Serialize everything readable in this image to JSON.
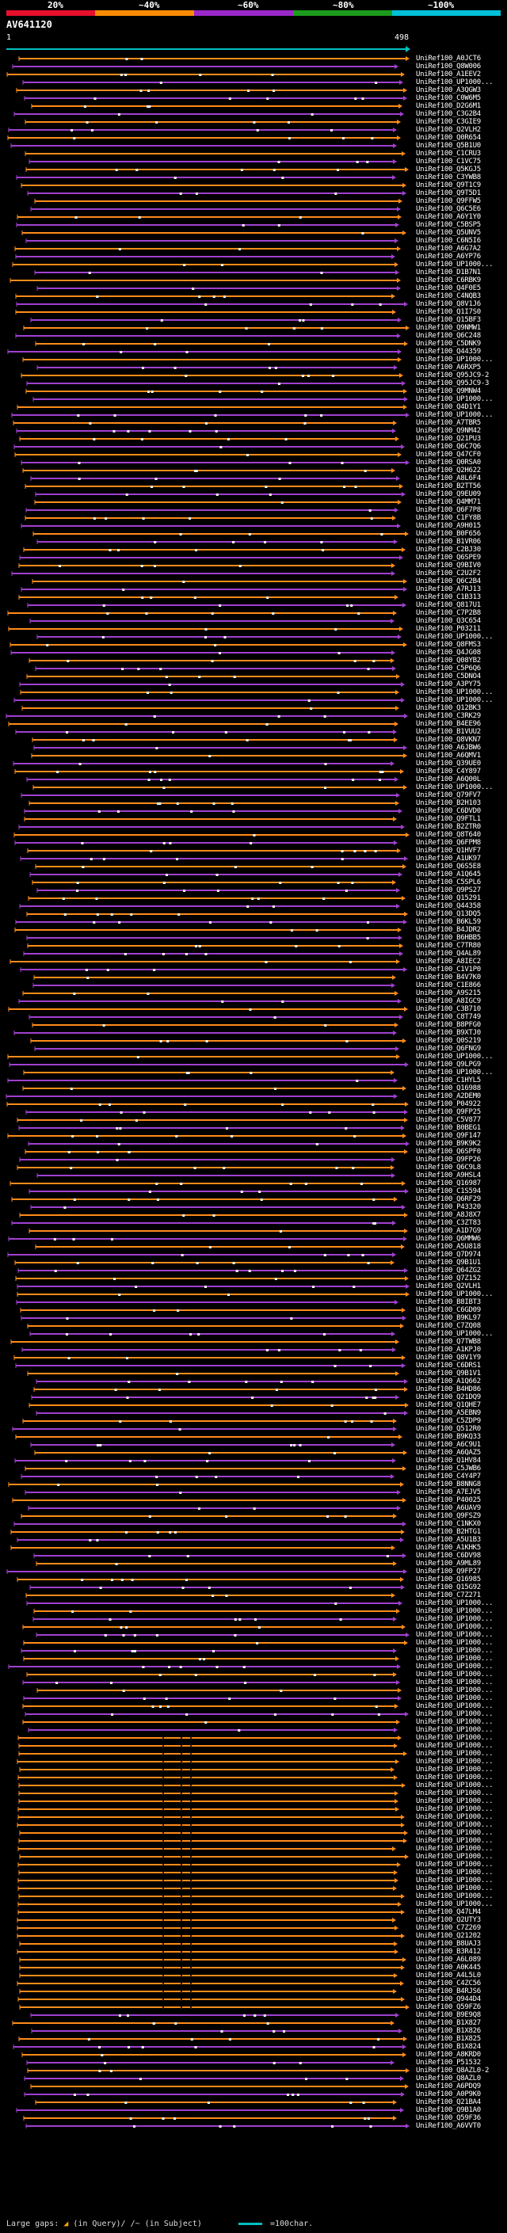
{
  "legend": {
    "labels": [
      "20%",
      "~40%",
      "~60%",
      "~80%",
      "~100%"
    ],
    "colors": [
      "#e8102c",
      "#ff8c00",
      "#9a28c8",
      "#1c9c1c",
      "#00c0d8"
    ]
  },
  "query": {
    "id": "AV641120",
    "start": "1",
    "end": "498"
  },
  "colors": {
    "orange": "#ff8c1a",
    "purple": "#a040d0",
    "axis": "#00c0c0",
    "background": "#000000"
  },
  "hits": [
    "UniRef100_A0JCT6",
    "UniRef100_Q8W006",
    "UniRef100_A1EEV2",
    "UniRef100_UP1000...",
    "UniRef100_A3QGW3",
    "UniRef100_C0W6M5",
    "UniRef100_D2G6M1",
    "UniRef100_C3G2B4",
    "UniRef100_C3GIE9",
    "UniRef100_Q2VLH2",
    "UniRef100_Q0R654",
    "UniRef100_Q5B1U0",
    "UniRef100_C1CRU3",
    "UniRef100_C1VC75",
    "UniRef100_Q5KGJ5",
    "UniRef100_C3YWB8",
    "UniRef100_Q9T1C9",
    "UniRef100_Q9T5D1",
    "UniRef100_Q9FFW5",
    "UniRef100_Q6C5E6",
    "UniRef100_A6Y1Y0",
    "UniRef100_C5BSP5",
    "UniRef100_Q5UNV5",
    "UniRef100_C6N5I6",
    "UniRef100_A6G7A2",
    "UniRef100_A6YP76",
    "UniRef100_UP1000...",
    "UniRef100_D1B7N1",
    "UniRef100_C6RBK9",
    "UniRef100_Q4F0E5",
    "UniRef100_C4NQB3",
    "UniRef100_Q8V1J6",
    "UniRef100_Q1I7S0",
    "UniRef100_Q15BF3",
    "UniRef100_Q9NMW1",
    "UniRef100_Q6C248",
    "UniRef100_C5DNK9",
    "UniRef100_Q44359",
    "UniRef100_UP1000...",
    "UniRef100_A6RXP5",
    "UniRef100_Q95JC9-2",
    "UniRef100_Q95JC9-3",
    "UniRef100_Q9MNW4",
    "UniRef100_UP1000...",
    "UniRef100_Q4D1Y1",
    "UniRef100_UP1000...",
    "UniRef100_A7TBR5",
    "UniRef100_Q9NM42",
    "UniRef100_Q21PU3",
    "UniRef100_Q6C7Q6",
    "UniRef100_Q47CF0",
    "UniRef100_Q0RSA0",
    "UniRef100_Q2H622",
    "UniRef100_A8L6F4",
    "UniRef100_B2TT56",
    "UniRef100_Q9EU09",
    "UniRef100_Q4MM71",
    "UniRef100_Q6F7P8",
    "UniRef100_C1FY8B",
    "UniRef100_A9H015",
    "UniRef100_B0F656",
    "UniRef100_B1VR06",
    "UniRef100_C2BJ30",
    "UniRef100_Q6SPE9",
    "UniRef100_Q9BIV0",
    "UniRef100_C2U2F2",
    "UniRef100_Q6C2B4",
    "UniRef100_A7RJ13",
    "UniRef100_C1B313",
    "UniRef100_Q817U1",
    "UniRef100_C7P2B8",
    "UniRef100_Q3C654",
    "UniRef100_P03211",
    "UniRef100_UP1000...",
    "UniRef100_Q8FMS3",
    "UniRef100_Q4JG08",
    "UniRef100_Q08YB2",
    "UniRef100_C5P6Q6",
    "UniRef100_C5DNO4",
    "UniRef100_A3PY75",
    "UniRef100_UP1000...",
    "UniRef100_UP1000...",
    "UniRef100_Q12BK3",
    "UniRef100_C3RK29",
    "UniRef100_B4EE96",
    "UniRef100_B1VUU2",
    "UniRef100_Q8VKN7",
    "UniRef100_A6JBW6",
    "UniRef100_A6QMV1",
    "UniRef100_Q39UE0",
    "UniRef100_C4Y897",
    "UniRef100_A6Q00L",
    "UniRef100_UP1000...",
    "UniRef100_Q79FV7",
    "UniRef100_B2H103",
    "UniRef100_C6DVD0",
    "UniRef100_Q9FTL1",
    "UniRef100_B2ZTR0",
    "UniRef100_Q8T640",
    "UniRef100_Q6FPM8",
    "UniRef100_Q1HVF7",
    "UniRef100_A1UK97",
    "UniRef100_Q6S5E8",
    "UniRef100_A1Q645",
    "UniRef100_C5SPL6",
    "UniRef100_Q9PS27",
    "UniRef100_Q15291",
    "UniRef100_Q44358",
    "UniRef100_Q13DQ5",
    "UniRef100_B6KL59",
    "UniRef100_B4JDR2",
    "UniRef100_B6HBB5",
    "UniRef100_C7TR80",
    "UniRef100_Q4AL89",
    "UniRef100_A8IEC2",
    "UniRef100_C1V1P0",
    "UniRef100_B4V7K0",
    "UniRef100_C1E866",
    "UniRef100_A9S215",
    "UniRef100_A8IGC9",
    "UniRef100_C3B710",
    "UniRef100_C8T749",
    "UniRef100_B8PFG0",
    "UniRef100_B9XTJ0",
    "UniRef100_Q0S219",
    "UniRef100_Q6FNG9",
    "UniRef100_UP1000...",
    "UniRef100_Q9LPG9",
    "UniRef100_UP1000...",
    "UniRef100_C1HYL5",
    "UniRef100_Q16988",
    "UniRef100_A2DEM0",
    "UniRef100_P04922",
    "UniRef100_Q9FP25",
    "UniRef100_C5V877",
    "UniRef100_B0BEG1",
    "UniRef100_Q9F147",
    "UniRef100_B9K9K2",
    "UniRef100_Q6SPF0",
    "UniRef100_Q9FP26",
    "UniRef100_Q6C9L8",
    "UniRef100_A9HSL4",
    "UniRef100_Q16987",
    "UniRef100_C1S594",
    "UniRef100_Q6RF29",
    "UniRef100_P43320",
    "UniRef100_A8J8X7",
    "UniRef100_C3ZT83",
    "UniRef100_A1D7G9",
    "UniRef100_Q6MMW6",
    "UniRef100_A5U818",
    "UniRef100_Q7D974",
    "UniRef100_Q9B1U1",
    "UniRef100_Q64ZG2",
    "UniRef100_Q7Z152",
    "UniRef100_Q2VLH1",
    "UniRef100_UP1000...",
    "UniRef100_B8IBT3",
    "UniRef100_C6GD09",
    "UniRef100_B9KL97",
    "UniRef100_C7ZQ08",
    "UniRef100_UP1000...",
    "UniRef100_Q7TWB8",
    "UniRef100_A1KPJ0",
    "UniRef100_Q8V1Y9",
    "UniRef100_C6DRS1",
    "UniRef100_Q9B1V1",
    "UniRef100_A1Q662",
    "UniRef100_B4HD86",
    "UniRef100_Q21DQ9",
    "UniRef100_Q1QHE7",
    "UniRef100_A5EBN9",
    "UniRef100_C5ZDP9",
    "UniRef100_Q512R0",
    "UniRef100_B9KQ33",
    "UniRef100_A6C9U1",
    "UniRef100_A6QAZ5",
    "UniRef100_Q1HV84",
    "UniRef100_C5JWB6",
    "UniRef100_C4Y4P7",
    "UniRef100_B8NNG8",
    "UniRef100_A7EJV5",
    "UniRef100_P40025",
    "UniRef100_A6UAV9",
    "UniRef100_Q9FSZ9",
    "UniRef100_C1NKX0",
    "UniRef100_B2HTG1",
    "UniRef100_A5U1B3",
    "UniRef100_A1KHK5",
    "UniRef100_C6DV98",
    "UniRef100_A9ML89",
    "UniRef100_Q9FP27",
    "UniRef100_Q16985",
    "UniRef100_Q15G92",
    "UniRef100_C7Z271",
    "UniRef100_UP1000...",
    "UniRef100_UP1000...",
    "UniRef100_UP1000...",
    "UniRef100_UP1000...",
    "UniRef100_UP1000...",
    "UniRef100_UP1000...",
    "UniRef100_UP1000...",
    "UniRef100_UP1000...",
    "UniRef100_UP1000...",
    "UniRef100_UP1000...",
    "UniRef100_UP1000...",
    "UniRef100_UP1000...",
    "UniRef100_UP1000...",
    "UniRef100_UP1000...",
    "UniRef100_UP1000...",
    "UniRef100_UP1000...",
    "UniRef100_UP1000...",
    "UniRef100_UP1000...",
    "UniRef100_UP1000...",
    "UniRef100_UP1000...",
    "UniRef100_UP1000...",
    "UniRef100_UP1000...",
    "UniRef100_UP1000...",
    "UniRef100_UP1000...",
    "UniRef100_UP1000...",
    "UniRef100_UP1000...",
    "UniRef100_UP1000...",
    "UniRef100_UP1000...",
    "UniRef100_UP1000...",
    "UniRef100_UP1000...",
    "UniRef100_UP1000...",
    "UniRef100_UP1000...",
    "UniRef100_UP1000...",
    "UniRef100_UP1000...",
    "UniRef100_UP1000...",
    "UniRef100_UP1000...",
    "UniRef100_UP1000...",
    "UniRef100_UP1000...",
    "UniRef100_UP1000...",
    "UniRef100_Q47LM4",
    "UniRef100_Q2UTY3",
    "UniRef100_C7Z269",
    "UniRef100_Q21202",
    "UniRef100_B8UAJ3",
    "UniRef100_B3R412",
    "UniRef100_A6L089",
    "UniRef100_A0K445",
    "UniRef100_A4L5L0",
    "UniRef100_C4ZC56",
    "UniRef100_B4RJS6",
    "UniRef100_Q944D4",
    "UniRef100_Q59FZ6",
    "UniRef100_B9E9Q8",
    "UniRef100_B1X827",
    "UniRef100_B1X826",
    "UniRef100_B1X825",
    "UniRef100_B1X824",
    "UniRef100_A8KRD0",
    "UniRef100_P51532",
    "UniRef100_Q8AZL0-2",
    "UniRef100_Q8AZL0",
    "UniRef100_A6PDQ9",
    "UniRef100_A0P9K0",
    "UniRef100_Q21BA4",
    "UniRef100_Q9B1A0",
    "UniRef100_Q59F36",
    "UniRef100_A6VVT0"
  ],
  "footer": {
    "large_gaps_label": "Large gaps:",
    "gap_query_text": "(in Query)/",
    "gap_subject_text": "(in Subject)",
    "scale_text": "=100char."
  }
}
